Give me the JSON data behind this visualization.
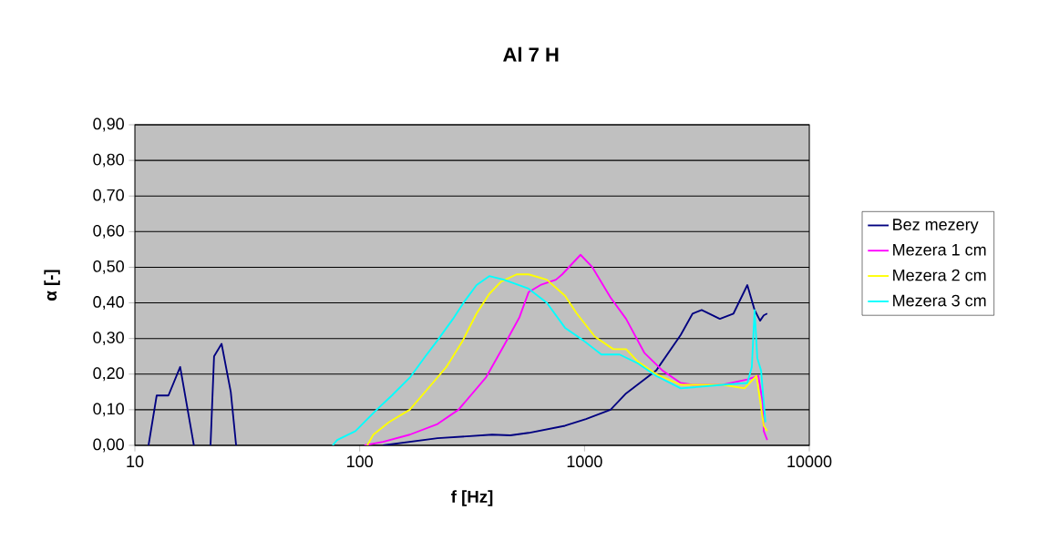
{
  "chart_data": {
    "type": "line",
    "title": "Al 7 H",
    "xlabel": "f [Hz]",
    "ylabel": "α [-]",
    "log": "x",
    "grid": "y",
    "legend": "right",
    "xlim": [
      10,
      10000
    ],
    "xticks": [
      10,
      100,
      1000,
      10000
    ],
    "ylim": [
      0,
      0.9
    ],
    "yticks": [
      {
        "value": 0,
        "label": "0,00"
      },
      {
        "value": 0.1,
        "label": "0,10"
      },
      {
        "value": 0.2,
        "label": "0,20"
      },
      {
        "value": 0.3,
        "label": "0,30"
      },
      {
        "value": 0.4,
        "label": "0,40"
      },
      {
        "value": 0.5,
        "label": "0,50"
      },
      {
        "value": 0.6,
        "label": "0,60"
      },
      {
        "value": 0.7,
        "label": "0,70"
      },
      {
        "value": 0.8,
        "label": "0,80"
      },
      {
        "value": 0.9,
        "label": "0,90"
      }
    ],
    "series": [
      {
        "name": "Bez mezery",
        "color": "#000080",
        "x": [
          11.5,
          12.5,
          14.1,
          15.9,
          18.3,
          20,
          21.7,
          22.5,
          24.3,
          26.7,
          28.2,
          90,
          127,
          222,
          388,
          468,
          564,
          819,
          1015,
          1306,
          1531,
          2083,
          2679,
          3027,
          3320,
          4000,
          4600,
          5300,
          5710,
          6040,
          6270,
          6500
        ],
        "values": [
          0,
          0.14,
          0.14,
          0.22,
          0,
          null,
          0,
          0.25,
          0.285,
          0.15,
          0,
          null,
          0,
          0.02,
          0.03,
          0.028,
          0.035,
          0.055,
          0.074,
          0.1,
          0.146,
          0.21,
          0.31,
          0.37,
          0.38,
          0.355,
          0.37,
          0.45,
          0.38,
          0.35,
          0.365,
          0.37
        ]
      },
      {
        "name": "Mezera 1 cm",
        "color": "#ff00ff",
        "x": [
          105,
          127,
          167,
          222,
          275,
          364,
          438,
          514,
          564,
          637,
          746,
          796,
          960,
          1084,
          1306,
          1531,
          1845,
          2223,
          2679,
          3027,
          4118,
          5300,
          5930,
          6210,
          6270,
          6500
        ],
        "values": [
          0,
          0.01,
          0.03,
          0.06,
          0.1,
          0.19,
          0.28,
          0.36,
          0.43,
          0.45,
          0.465,
          0.48,
          0.535,
          0.5,
          0.415,
          0.355,
          0.26,
          0.21,
          0.175,
          0.17,
          0.17,
          0.185,
          0.195,
          0.12,
          0.04,
          0.015
        ]
      },
      {
        "name": "Mezera 2 cm",
        "color": "#ffff00",
        "x": [
          108,
          115,
          135,
          167,
          208,
          243,
          285,
          331,
          377,
          426,
          499,
          564,
          680,
          819,
          924,
          1113,
          1343,
          1531,
          1728,
          2083,
          2679,
          4118,
          5150,
          5820,
          6270,
          6500
        ],
        "values": [
          0,
          0.03,
          0.065,
          0.1,
          0.17,
          0.22,
          0.29,
          0.37,
          0.425,
          0.46,
          0.48,
          0.48,
          0.465,
          0.42,
          0.37,
          0.305,
          0.27,
          0.27,
          0.235,
          0.2,
          0.17,
          0.17,
          0.16,
          0.195,
          0.055,
          0.04
        ]
      },
      {
        "name": "Mezera 3 cm",
        "color": "#00ffff",
        "x": [
          75.8,
          79.4,
          95.7,
          119,
          139,
          167,
          196,
          222,
          260,
          293,
          331,
          377,
          438,
          564,
          680,
          819,
          986,
          1189,
          1432,
          1728,
          2083,
          2679,
          4118,
          5300,
          5550,
          5710,
          5870,
          6100,
          6380
        ],
        "values": [
          0,
          0.015,
          0.04,
          0.1,
          0.14,
          0.19,
          0.25,
          0.295,
          0.355,
          0.405,
          0.45,
          0.475,
          0.465,
          0.44,
          0.4,
          0.33,
          0.295,
          0.255,
          0.255,
          0.23,
          0.195,
          0.16,
          0.17,
          0.175,
          0.22,
          0.38,
          0.245,
          0.21,
          0.065
        ]
      }
    ]
  }
}
